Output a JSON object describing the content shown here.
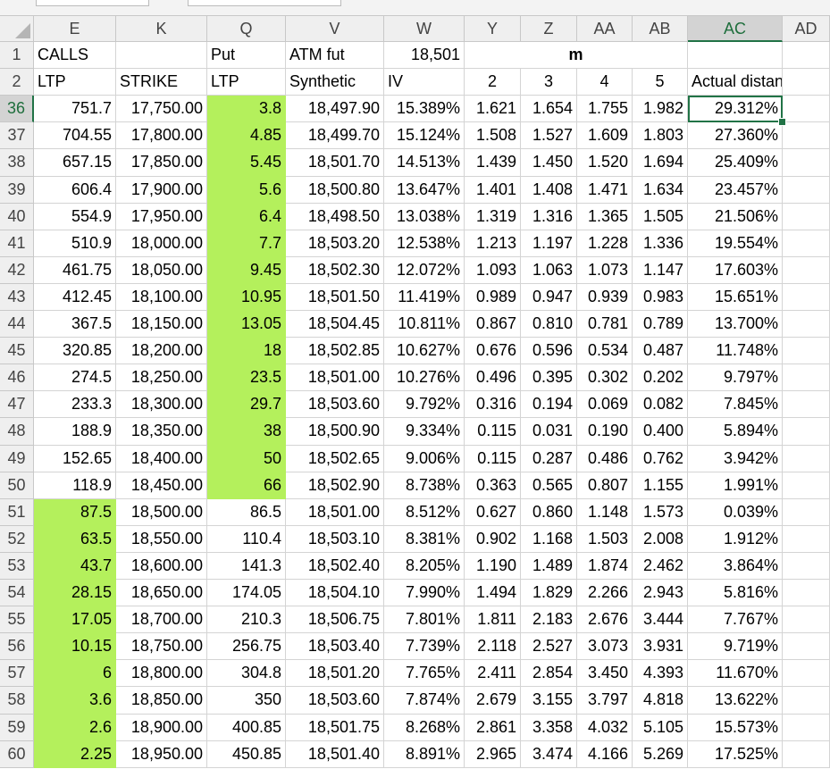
{
  "sheet": {
    "columns": [
      "E",
      "K",
      "Q",
      "V",
      "W",
      "Y",
      "Z",
      "AA",
      "AB",
      "AC",
      "AD"
    ],
    "selected_column": "AC",
    "selected_row": "36",
    "highlight_color": "#b4f05c",
    "header_rows": [
      {
        "row": "1",
        "cells": {
          "E": "CALLS",
          "Q": "Put",
          "V": "ATM fut",
          "W": "18,501",
          "Y": "m"
        }
      },
      {
        "row": "2",
        "cells": {
          "E": "LTP",
          "K": "STRIKE",
          "Q": "LTP",
          "V": "Synthetic",
          "W": "IV",
          "Y": "2",
          "Z": "3",
          "AA": "4",
          "AB": "5",
          "AC": "Actual distance"
        }
      }
    ],
    "rows": [
      {
        "row": "36",
        "highlight": "Q",
        "cells": [
          "751.7",
          "17,750.00",
          "3.8",
          "18,497.90",
          "15.389%",
          "1.621",
          "1.654",
          "1.755",
          "1.982",
          "29.312%"
        ]
      },
      {
        "row": "37",
        "highlight": "Q",
        "cells": [
          "704.55",
          "17,800.00",
          "4.85",
          "18,499.70",
          "15.124%",
          "1.508",
          "1.527",
          "1.609",
          "1.803",
          "27.360%"
        ]
      },
      {
        "row": "38",
        "highlight": "Q",
        "cells": [
          "657.15",
          "17,850.00",
          "5.45",
          "18,501.70",
          "14.513%",
          "1.439",
          "1.450",
          "1.520",
          "1.694",
          "25.409%"
        ]
      },
      {
        "row": "39",
        "highlight": "Q",
        "cells": [
          "606.4",
          "17,900.00",
          "5.6",
          "18,500.80",
          "13.647%",
          "1.401",
          "1.408",
          "1.471",
          "1.634",
          "23.457%"
        ]
      },
      {
        "row": "40",
        "highlight": "Q",
        "cells": [
          "554.9",
          "17,950.00",
          "6.4",
          "18,498.50",
          "13.038%",
          "1.319",
          "1.316",
          "1.365",
          "1.505",
          "21.506%"
        ]
      },
      {
        "row": "41",
        "highlight": "Q",
        "cells": [
          "510.9",
          "18,000.00",
          "7.7",
          "18,503.20",
          "12.538%",
          "1.213",
          "1.197",
          "1.228",
          "1.336",
          "19.554%"
        ]
      },
      {
        "row": "42",
        "highlight": "Q",
        "cells": [
          "461.75",
          "18,050.00",
          "9.45",
          "18,502.30",
          "12.072%",
          "1.093",
          "1.063",
          "1.073",
          "1.147",
          "17.603%"
        ]
      },
      {
        "row": "43",
        "highlight": "Q",
        "cells": [
          "412.45",
          "18,100.00",
          "10.95",
          "18,501.50",
          "11.419%",
          "0.989",
          "0.947",
          "0.939",
          "0.983",
          "15.651%"
        ]
      },
      {
        "row": "44",
        "highlight": "Q",
        "cells": [
          "367.5",
          "18,150.00",
          "13.05",
          "18,504.45",
          "10.811%",
          "0.867",
          "0.810",
          "0.781",
          "0.789",
          "13.700%"
        ]
      },
      {
        "row": "45",
        "highlight": "Q",
        "cells": [
          "320.85",
          "18,200.00",
          "18",
          "18,502.85",
          "10.627%",
          "0.676",
          "0.596",
          "0.534",
          "0.487",
          "11.748%"
        ]
      },
      {
        "row": "46",
        "highlight": "Q",
        "cells": [
          "274.5",
          "18,250.00",
          "23.5",
          "18,501.00",
          "10.276%",
          "0.496",
          "0.395",
          "0.302",
          "0.202",
          "9.797%"
        ]
      },
      {
        "row": "47",
        "highlight": "Q",
        "cells": [
          "233.3",
          "18,300.00",
          "29.7",
          "18,503.60",
          "9.792%",
          "0.316",
          "0.194",
          "0.069",
          "0.082",
          "7.845%"
        ]
      },
      {
        "row": "48",
        "highlight": "Q",
        "cells": [
          "188.9",
          "18,350.00",
          "38",
          "18,500.90",
          "9.334%",
          "0.115",
          "0.031",
          "0.190",
          "0.400",
          "5.894%"
        ]
      },
      {
        "row": "49",
        "highlight": "Q",
        "cells": [
          "152.65",
          "18,400.00",
          "50",
          "18,502.65",
          "9.006%",
          "0.115",
          "0.287",
          "0.486",
          "0.762",
          "3.942%"
        ]
      },
      {
        "row": "50",
        "highlight": "Q",
        "cells": [
          "118.9",
          "18,450.00",
          "66",
          "18,502.90",
          "8.738%",
          "0.363",
          "0.565",
          "0.807",
          "1.155",
          "1.991%"
        ]
      },
      {
        "row": "51",
        "highlight": "E",
        "cells": [
          "87.5",
          "18,500.00",
          "86.5",
          "18,501.00",
          "8.512%",
          "0.627",
          "0.860",
          "1.148",
          "1.573",
          "0.039%"
        ]
      },
      {
        "row": "52",
        "highlight": "E",
        "cells": [
          "63.5",
          "18,550.00",
          "110.4",
          "18,503.10",
          "8.381%",
          "0.902",
          "1.168",
          "1.503",
          "2.008",
          "1.912%"
        ]
      },
      {
        "row": "53",
        "highlight": "E",
        "cells": [
          "43.7",
          "18,600.00",
          "141.3",
          "18,502.40",
          "8.205%",
          "1.190",
          "1.489",
          "1.874",
          "2.462",
          "3.864%"
        ]
      },
      {
        "row": "54",
        "highlight": "E",
        "cells": [
          "28.15",
          "18,650.00",
          "174.05",
          "18,504.10",
          "7.990%",
          "1.494",
          "1.829",
          "2.266",
          "2.943",
          "5.816%"
        ]
      },
      {
        "row": "55",
        "highlight": "E",
        "cells": [
          "17.05",
          "18,700.00",
          "210.3",
          "18,506.75",
          "7.801%",
          "1.811",
          "2.183",
          "2.676",
          "3.444",
          "7.767%"
        ]
      },
      {
        "row": "56",
        "highlight": "E",
        "cells": [
          "10.15",
          "18,750.00",
          "256.75",
          "18,503.40",
          "7.739%",
          "2.118",
          "2.527",
          "3.073",
          "3.931",
          "9.719%"
        ]
      },
      {
        "row": "57",
        "highlight": "E",
        "cells": [
          "6",
          "18,800.00",
          "304.8",
          "18,501.20",
          "7.765%",
          "2.411",
          "2.854",
          "3.450",
          "4.393",
          "11.670%"
        ]
      },
      {
        "row": "58",
        "highlight": "E",
        "cells": [
          "3.6",
          "18,850.00",
          "350",
          "18,503.60",
          "7.874%",
          "2.679",
          "3.155",
          "3.797",
          "4.818",
          "13.622%"
        ]
      },
      {
        "row": "59",
        "highlight": "E",
        "cells": [
          "2.6",
          "18,900.00",
          "400.85",
          "18,501.75",
          "8.268%",
          "2.861",
          "3.358",
          "4.032",
          "5.105",
          "15.573%"
        ]
      },
      {
        "row": "60",
        "highlight": "E",
        "cells": [
          "2.25",
          "18,950.00",
          "450.85",
          "18,501.40",
          "8.891%",
          "2.965",
          "3.474",
          "4.166",
          "5.269",
          "17.525%"
        ]
      }
    ]
  }
}
